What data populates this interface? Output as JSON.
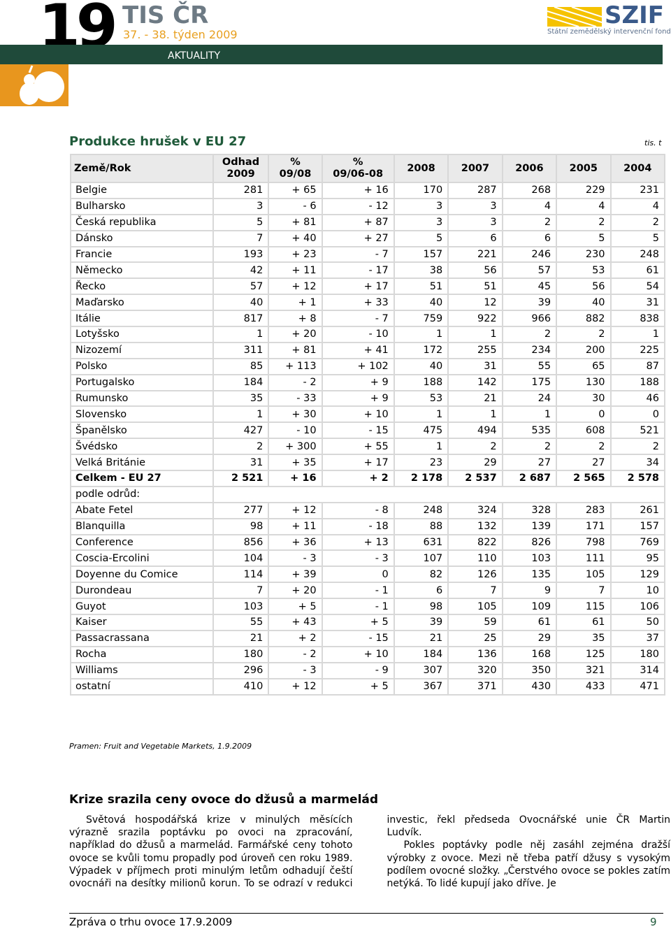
{
  "header": {
    "number": "19",
    "brand": "TIS ČR",
    "week": "37. - 38. týden 2009",
    "section": "AKTUALITY",
    "logo": "SZIF",
    "logo_sub": "Státní zemědělský intervenční fond"
  },
  "table": {
    "title": "Produkce hrušek v EU 27",
    "unit": "tis. t",
    "columns": [
      [
        "Země/Rok"
      ],
      [
        "Odhad",
        "2009"
      ],
      [
        "%",
        "09/08"
      ],
      [
        "%",
        "09/06-08"
      ],
      [
        "2008"
      ],
      [
        "2007"
      ],
      [
        "2006"
      ],
      [
        "2005"
      ],
      [
        "2004"
      ]
    ],
    "rows": [
      [
        "Belgie",
        "281",
        "+ 65",
        "+ 16",
        "170",
        "287",
        "268",
        "229",
        "231"
      ],
      [
        "Bulharsko",
        "3",
        "- 6",
        "- 12",
        "3",
        "3",
        "4",
        "4",
        "4"
      ],
      [
        "Česká republika",
        "5",
        "+ 81",
        "+ 87",
        "3",
        "3",
        "2",
        "2",
        "2"
      ],
      [
        "Dánsko",
        "7",
        "+ 40",
        "+ 27",
        "5",
        "6",
        "6",
        "5",
        "5"
      ],
      [
        "Francie",
        "193",
        "+ 23",
        "- 7",
        "157",
        "221",
        "246",
        "230",
        "248"
      ],
      [
        "Německo",
        "42",
        "+ 11",
        "- 17",
        "38",
        "56",
        "57",
        "53",
        "61"
      ],
      [
        "Řecko",
        "57",
        "+ 12",
        "+ 17",
        "51",
        "51",
        "45",
        "56",
        "54"
      ],
      [
        "Maďarsko",
        "40",
        "+ 1",
        "+ 33",
        "40",
        "12",
        "39",
        "40",
        "31"
      ],
      [
        "Itálie",
        "817",
        "+ 8",
        "- 7",
        "759",
        "922",
        "966",
        "882",
        "838"
      ],
      [
        "Lotyšsko",
        "1",
        "+ 20",
        "- 10",
        "1",
        "1",
        "2",
        "2",
        "1"
      ],
      [
        "Nizozemí",
        "311",
        "+ 81",
        "+ 41",
        "172",
        "255",
        "234",
        "200",
        "225"
      ],
      [
        "Polsko",
        "85",
        "+ 113",
        "+ 102",
        "40",
        "31",
        "55",
        "65",
        "87"
      ],
      [
        "Portugalsko",
        "184",
        "- 2",
        "+ 9",
        "188",
        "142",
        "175",
        "130",
        "188"
      ],
      [
        "Rumunsko",
        "35",
        "- 33",
        "+ 9",
        "53",
        "21",
        "24",
        "30",
        "46"
      ],
      [
        "Slovensko",
        "1",
        "+ 30",
        "+ 10",
        "1",
        "1",
        "1",
        "0",
        "0"
      ],
      [
        "Španělsko",
        "427",
        "- 10",
        "- 15",
        "475",
        "494",
        "535",
        "608",
        "521"
      ],
      [
        "Švédsko",
        "2",
        "+ 300",
        "+ 55",
        "1",
        "2",
        "2",
        "2",
        "2"
      ],
      [
        "Velká Británie",
        "31",
        "+ 35",
        "+ 17",
        "23",
        "29",
        "27",
        "27",
        "34"
      ],
      [
        "Celkem - EU 27",
        "2 521",
        "+ 16",
        "+ 2",
        "2 178",
        "2 537",
        "2 687",
        "2 565",
        "2 578"
      ],
      [
        "podle odrůd:"
      ],
      [
        "Abate Fetel",
        "277",
        "+ 12",
        "- 8",
        "248",
        "324",
        "328",
        "283",
        "261"
      ],
      [
        "Blanquilla",
        "98",
        "+ 11",
        "- 18",
        "88",
        "132",
        "139",
        "171",
        "157"
      ],
      [
        "Conference",
        "856",
        "+ 36",
        "+ 13",
        "631",
        "822",
        "826",
        "798",
        "769"
      ],
      [
        "Coscia-Ercolini",
        "104",
        "- 3",
        "- 3",
        "107",
        "110",
        "103",
        "111",
        "95"
      ],
      [
        "Doyenne du Comice",
        "114",
        "+ 39",
        "0",
        "82",
        "126",
        "135",
        "105",
        "129"
      ],
      [
        "Durondeau",
        "7",
        "+ 20",
        "- 1",
        "6",
        "7",
        "9",
        "7",
        "10"
      ],
      [
        "Guyot",
        "103",
        "+ 5",
        "- 1",
        "98",
        "105",
        "109",
        "115",
        "106"
      ],
      [
        "Kaiser",
        "55",
        "+ 43",
        "+ 5",
        "39",
        "59",
        "61",
        "61",
        "50"
      ],
      [
        "Passacrassana",
        "21",
        "+ 2",
        "- 15",
        "21",
        "25",
        "29",
        "35",
        "37"
      ],
      [
        "Rocha",
        "180",
        "- 2",
        "+ 10",
        "184",
        "136",
        "168",
        "125",
        "180"
      ],
      [
        "Williams",
        "296",
        "- 3",
        "- 9",
        "307",
        "320",
        "350",
        "321",
        "314"
      ],
      [
        "ostatní",
        "410",
        "+ 12",
        "+ 5",
        "367",
        "371",
        "430",
        "433",
        "471"
      ]
    ],
    "source": "Pramen: Fruit and Vegetable Markets, 1.9.2009"
  },
  "article": {
    "title": "Krize srazila ceny ovoce do džusů a marmelád",
    "paragraphs": [
      "Světová hospodářská krize v minulých měsících výrazně srazila poptávku po ovoci na zpracování, například do džusů a marmelád. Farmářské ceny tohoto ovoce se kvůli tomu propadly pod úroveň cen roku 1989. Výpadek v příjmech proti minulým letům odhadují čeští ovocnáři na desítky milionů korun. To se odrazí v redukci investic, řekl předseda Ovocnářské unie ČR Martin Ludvík.",
      "Pokles poptávky podle něj zasáhl zejména dražší výrobky z ovoce. Mezi ně třeba patří džusy s vysokým podílem ovocné složky. „Čerstvého ovoce se pokles zatím netýká. To lidé kupují jako dříve. Je"
    ]
  },
  "footer": {
    "text": "Zpráva o trhu ovoce 17.9.2009",
    "page": "9"
  }
}
